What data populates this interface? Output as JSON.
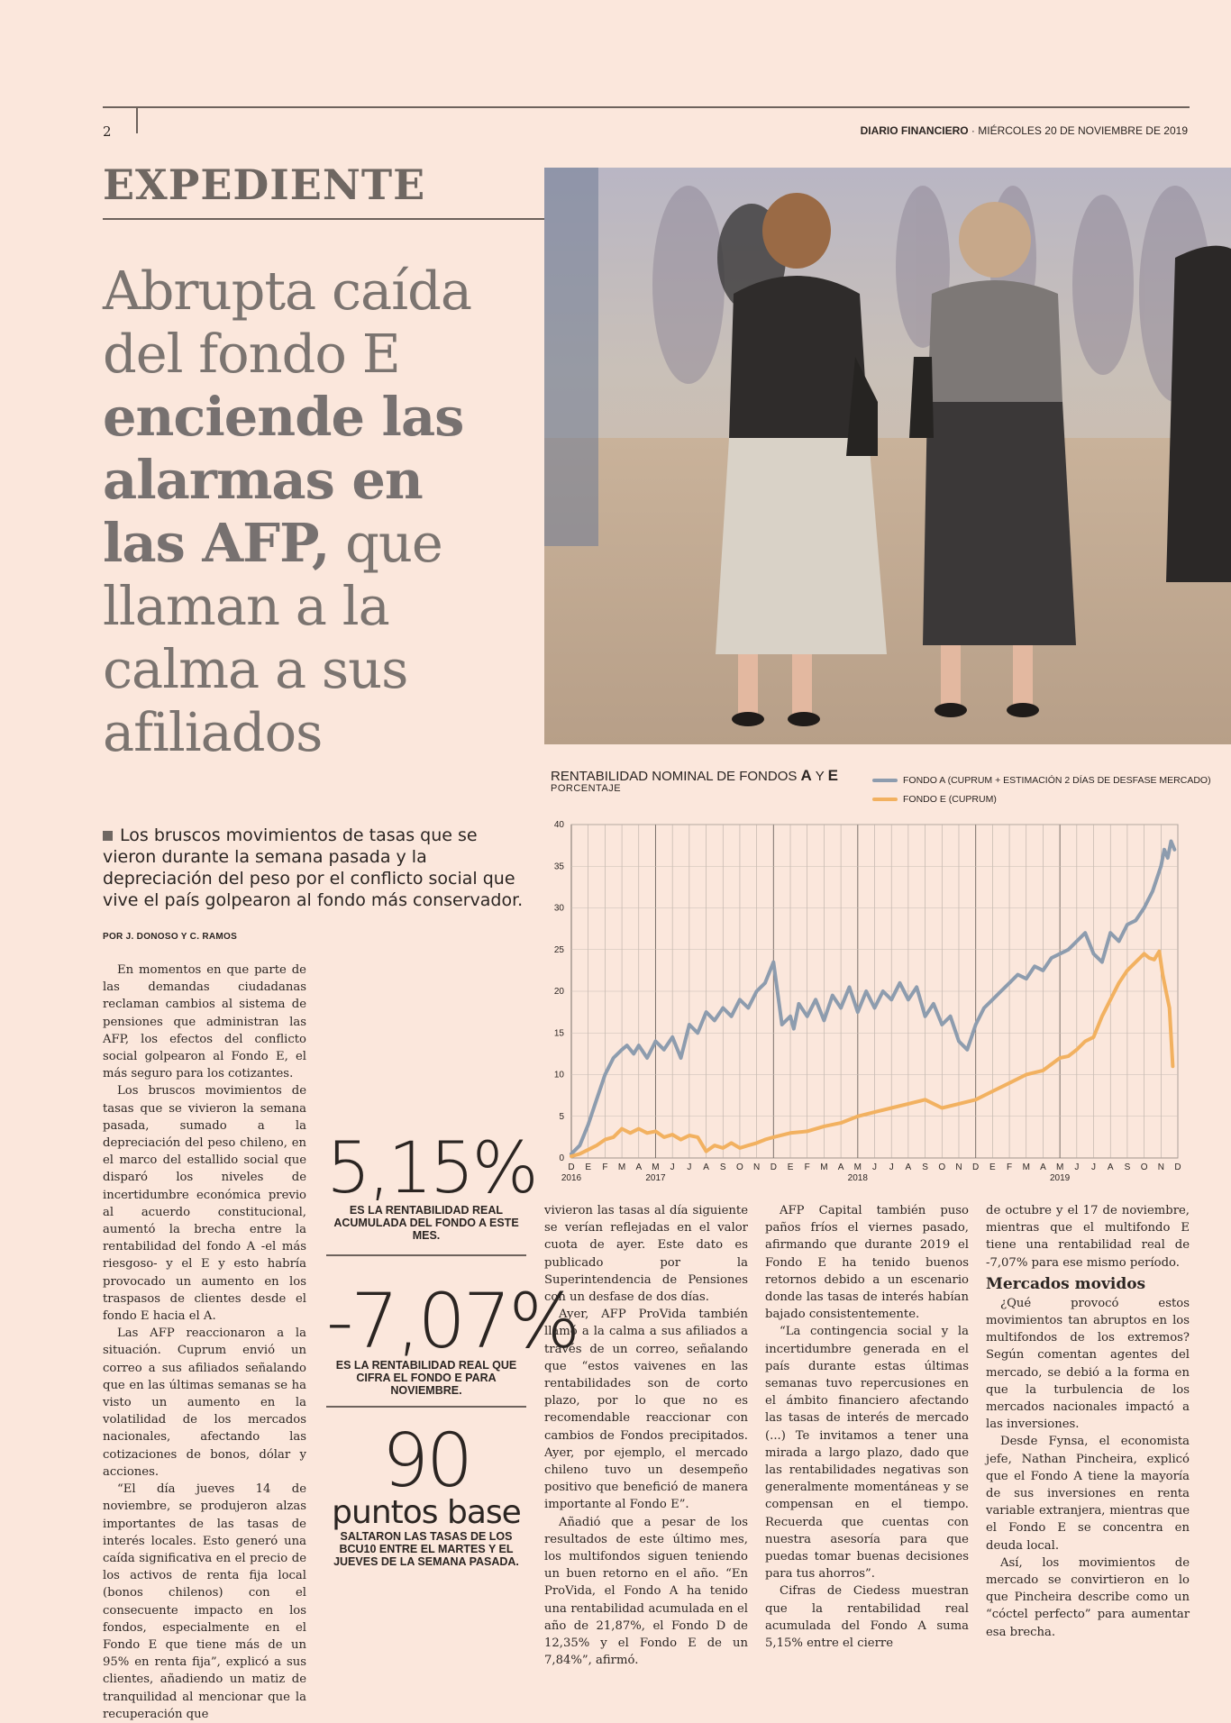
{
  "header": {
    "page_number": "2",
    "publication": "DIARIO FINANCIERO",
    "date": "MIÉRCOLES 20 DE NOVIEMBRE DE 2019"
  },
  "section": "EXPEDIENTE",
  "headline": {
    "line1": "Abrupta caída",
    "line2": "del fondo E",
    "bold1": "enciende las",
    "bold2": "alarmas en",
    "bold3": "las AFP,",
    "line3_tail": " que",
    "line4": "llaman a la",
    "line5": "calma a sus",
    "line6": "afiliados"
  },
  "lead": "Los bruscos movimientos de tasas que se vieron durante la semana pasada y la depreciación del peso por el conflicto social que vive el país golpearon al fondo más conservador.",
  "byline": "POR J. DONOSO Y C. RAMOS",
  "body": {
    "col1": [
      "En momentos en que parte de las demandas ciudadanas reclaman cambios al sistema de pensiones que administran las AFP, los efectos del conflicto social golpearon al Fondo E, el más seguro para los cotizantes.",
      "Los bruscos movimientos de tasas que se vivieron la semana pasada, sumado a la depreciación del peso chileno, en el marco del estallido social que disparó los niveles de incertidumbre económica previo al acuerdo constitucional, aumentó la brecha entre la rentabilidad del fondo A -el más riesgoso- y el E y esto habría provocado un aumento en los traspasos de clientes desde el fondo E hacia el A.",
      "Las AFP reaccionaron a la situación. Cuprum envió un correo a sus afiliados señalando que en las últimas semanas se ha visto un aumento en la volatilidad de los mercados nacionales, afectando las cotizaciones de bonos, dólar y acciones.",
      "“El día jueves 14 de noviembre, se produjeron alzas importantes de las tasas de interés locales. Esto generó una caída significativa en el precio de los activos de renta fija local (bonos chilenos) con el consecuente impacto en los fondos, especialmente en el Fondo E que tiene más de un 95% en renta fija”, explicó a sus clientes, añadiendo un matiz de tranquilidad al mencionar que la recuperación que"
    ],
    "col3": [
      "vivieron las tasas al día siguiente se verían reflejadas en el valor cuota de ayer. Este dato es publicado por la Superintendencia de Pensiones con un desfase de dos días.",
      "Ayer, AFP ProVida también llamó a la calma a sus afiliados a través de un correo, señalando que “estos vaivenes en las rentabilidades son de corto plazo, por lo que no es recomendable reaccionar con cambios de Fondos precipitados. Ayer, por ejemplo, el mercado chileno tuvo un desempeño positivo que benefició de manera importante al Fondo E”.",
      "Añadió que a pesar de los resultados de este último mes, los multifondos siguen teniendo un buen retorno en el año. “En ProVida, el Fondo A ha tenido una rentabilidad acumulada en el año de 21,87%, el Fondo D de 12,35% y el Fondo E de un 7,84%”, afirmó."
    ],
    "col4": [
      "AFP Capital también puso paños fríos el viernes pasado, afirmando que durante 2019 el Fondo E ha tenido buenos retornos debido a un escenario donde las tasas de interés habían bajado consistentemente.",
      "“La contingencia social y la incertidumbre generada en el país durante estas últimas semanas tuvo repercusiones en el ámbito financiero afectando las tasas de interés de mercado (...) Te invitamos a tener una mirada a largo plazo, dado que las rentabilidades negativas son generalmente momentáneas y se compensan en el tiempo. Recuerda que cuentas con nuestra asesoría para que puedas tomar buenas decisiones para tus ahorros”.",
      "Cifras de Ciedess muestran que la rentabilidad real acumulada del Fondo A suma 5,15% entre el cierre"
    ],
    "col5_intro": "de octubre y el 17 de noviembre, mientras que el multifondo E tiene una rentabilidad real de -7,07% para ese mismo período.",
    "col5_heading": "Mercados movidos",
    "col5": [
      "¿Qué provocó estos movimientos tan abruptos en los multifondos de los extremos? Según comentan agentes del mercado, se debió a la forma en que la turbulencia de los mercados nacionales impactó a las inversiones.",
      "Desde Fynsa, el economista jefe, Nathan Pincheira, explicó que el Fondo A tiene la mayoría de sus inversiones en renta variable extranjera, mientras que el Fondo E se concentra en deuda local.",
      "Así, los movimientos de mercado se convirtieron en lo que Pincheira describe como un “cóctel perfecto” para aumentar esa brecha."
    ]
  },
  "stats": [
    {
      "value": "5,15%",
      "caption": "ES LA RENTABILIDAD REAL ACUMULADA DEL FONDO A ESTE MES."
    },
    {
      "value": "-7,07%",
      "caption": "ES LA RENTABILIDAD REAL QUE CIFRA EL FONDO E PARA NOVIEMBRE."
    },
    {
      "value": "90",
      "value_sub": "puntos base",
      "caption": "SALTARON LAS TASAS DE LOS BCU10 ENTRE EL MARTES Y EL JUEVES DE LA SEMANA PASADA."
    }
  ],
  "chart_data": {
    "type": "line",
    "title": "RENTABILIDAD NOMINAL DE FONDOS",
    "title_bold_a": "A",
    "title_y": "Y",
    "title_bold_e": "E",
    "subtitle": "PORCENTAJE",
    "ylim": [
      0,
      40
    ],
    "yticks": [
      0,
      5,
      10,
      15,
      20,
      25,
      30,
      35,
      40
    ],
    "month_labels": [
      "D",
      "E",
      "F",
      "M",
      "A",
      "M",
      "J",
      "J",
      "A",
      "S",
      "O",
      "N",
      "D",
      "E",
      "F",
      "M",
      "A",
      "M",
      "J",
      "J",
      "A",
      "S",
      "O",
      "N",
      "D",
      "E",
      "F",
      "M",
      "A",
      "M",
      "J",
      "J",
      "A",
      "S",
      "O",
      "N",
      "D"
    ],
    "year_labels": [
      {
        "label": "2016",
        "month_index": 0
      },
      {
        "label": "2017",
        "month_index": 5
      },
      {
        "label": "2018",
        "month_index": 17
      },
      {
        "label": "2019",
        "month_index": 29
      }
    ],
    "grid": true,
    "legend_position": "top-right",
    "series": [
      {
        "name": "FONDO A (CUPRUM + ESTIMACIÓN 2 DÍAS DE DESFASE MERCADO)",
        "color": "#8d9cae",
        "x": [
          0,
          0.5,
          1,
          1.5,
          2,
          2.5,
          3,
          3.3,
          3.7,
          4,
          4.5,
          5,
          5.5,
          6,
          6.5,
          7,
          7.5,
          8,
          8.5,
          9,
          9.5,
          10,
          10.5,
          11,
          11.5,
          12,
          12.5,
          13,
          13.2,
          13.5,
          14,
          14.5,
          15,
          15.5,
          16,
          16.5,
          17,
          17.5,
          18,
          18.5,
          19,
          19.5,
          20,
          20.5,
          21,
          21.5,
          22,
          22.5,
          23,
          23.5,
          24,
          24.5,
          25,
          25.5,
          26,
          26.5,
          27,
          27.5,
          28,
          28.5,
          29,
          29.5,
          30,
          30.5,
          31,
          31.5,
          32,
          32.5,
          33,
          33.5,
          34,
          34.5,
          35,
          35.2,
          35.4,
          35.6,
          35.8
        ],
        "y": [
          0.5,
          1.5,
          4,
          7,
          10,
          12,
          13,
          13.5,
          12.5,
          13.5,
          12,
          14,
          13,
          14.5,
          12,
          16,
          15,
          17.5,
          16.5,
          18,
          17,
          19,
          18,
          20,
          21,
          23.5,
          16,
          17,
          15.5,
          18.5,
          17,
          19,
          16.5,
          19.5,
          18,
          20.5,
          17.5,
          20,
          18,
          20,
          19,
          21,
          19,
          20.5,
          17,
          18.5,
          16,
          17,
          14,
          13,
          16,
          18,
          19,
          20,
          21,
          22,
          21.5,
          23,
          22.5,
          24,
          24.5,
          25,
          26,
          27,
          24.5,
          23.5,
          27,
          26,
          28,
          28.5,
          30,
          32,
          35,
          37,
          36,
          38,
          37
        ]
      },
      {
        "name": "FONDO E (CUPRUM)",
        "color": "#f2b160",
        "x": [
          0,
          0.5,
          1,
          1.5,
          2,
          2.5,
          3,
          3.5,
          4,
          4.5,
          5,
          5.5,
          6,
          6.5,
          7,
          7.5,
          8,
          8.5,
          9,
          9.5,
          10,
          10.5,
          11,
          11.5,
          12,
          13,
          14,
          15,
          16,
          17,
          18,
          19,
          20,
          21,
          22,
          23,
          24,
          25,
          26,
          27,
          28,
          29,
          29.5,
          30,
          30.5,
          31,
          31.5,
          32,
          32.5,
          33,
          33.5,
          34,
          34.3,
          34.6,
          34.9,
          35.1,
          35.3,
          35.5,
          35.7
        ],
        "y": [
          0.2,
          0.5,
          1,
          1.5,
          2.2,
          2.5,
          3.5,
          3,
          3.5,
          3,
          3.2,
          2.5,
          2.8,
          2.2,
          2.7,
          2.5,
          0.8,
          1.5,
          1.2,
          1.8,
          1.2,
          1.5,
          1.8,
          2.2,
          2.5,
          3,
          3.2,
          3.8,
          4.2,
          5,
          5.5,
          6,
          6.5,
          7,
          6,
          6.5,
          7,
          8,
          9,
          10,
          10.5,
          12,
          12.2,
          13,
          14,
          14.5,
          17,
          19,
          21,
          22.5,
          23.5,
          24.5,
          24,
          23.8,
          24.8,
          22,
          20,
          18,
          11
        ]
      }
    ]
  }
}
